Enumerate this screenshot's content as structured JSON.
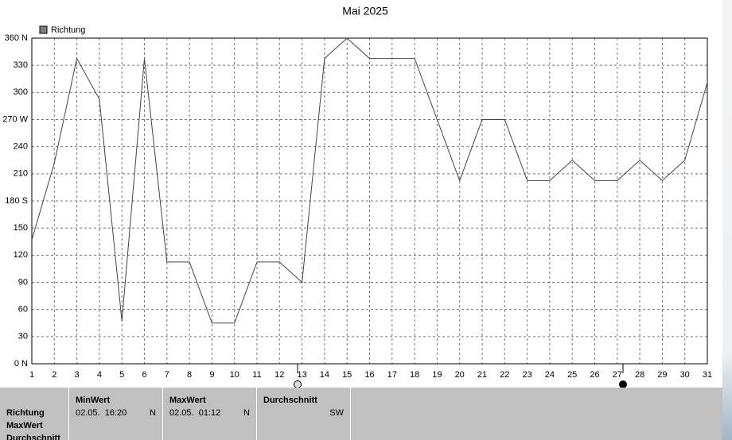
{
  "chart_data": {
    "type": "line",
    "title": "Mai 2025",
    "x": [
      1,
      2,
      3,
      4,
      5,
      6,
      7,
      8,
      9,
      10,
      11,
      12,
      13,
      14,
      15,
      16,
      17,
      18,
      19,
      20,
      21,
      22,
      23,
      24,
      25,
      26,
      27,
      28,
      29,
      30,
      31
    ],
    "xlim": [
      1,
      31
    ],
    "series": [
      {
        "name": "Richtung",
        "color": "#808080",
        "values": [
          137,
          222,
          337.5,
          292.5,
          47,
          337.5,
          112.5,
          112.5,
          45,
          45,
          112.5,
          112.5,
          90,
          337.5,
          360,
          337.5,
          337.5,
          337.5,
          270,
          202.5,
          270,
          270,
          202.5,
          202.5,
          225,
          202.5,
          202.5,
          225,
          202.5,
          225,
          311
        ]
      }
    ],
    "ylim": [
      0,
      360
    ],
    "yticks": [
      {
        "value": 0,
        "label": "0 N"
      },
      30,
      60,
      90,
      120,
      150,
      {
        "value": 180,
        "label": "180 S"
      },
      210,
      240,
      {
        "value": 270,
        "label": "270 W"
      },
      300,
      330,
      {
        "value": 360,
        "label": "360 N"
      }
    ],
    "grid": true
  },
  "panel": {
    "columns": [
      "MinWert",
      "MaxWert",
      "Durchschnitt"
    ],
    "row_labels": [
      "Richtung",
      "MaxWert",
      "Durchschnitt"
    ],
    "min": {
      "time": "02.05.  16:20",
      "dir": "N"
    },
    "max": {
      "time": "02.05.  01:12",
      "dir": "N"
    },
    "avg": {
      "dir": "SW"
    }
  }
}
